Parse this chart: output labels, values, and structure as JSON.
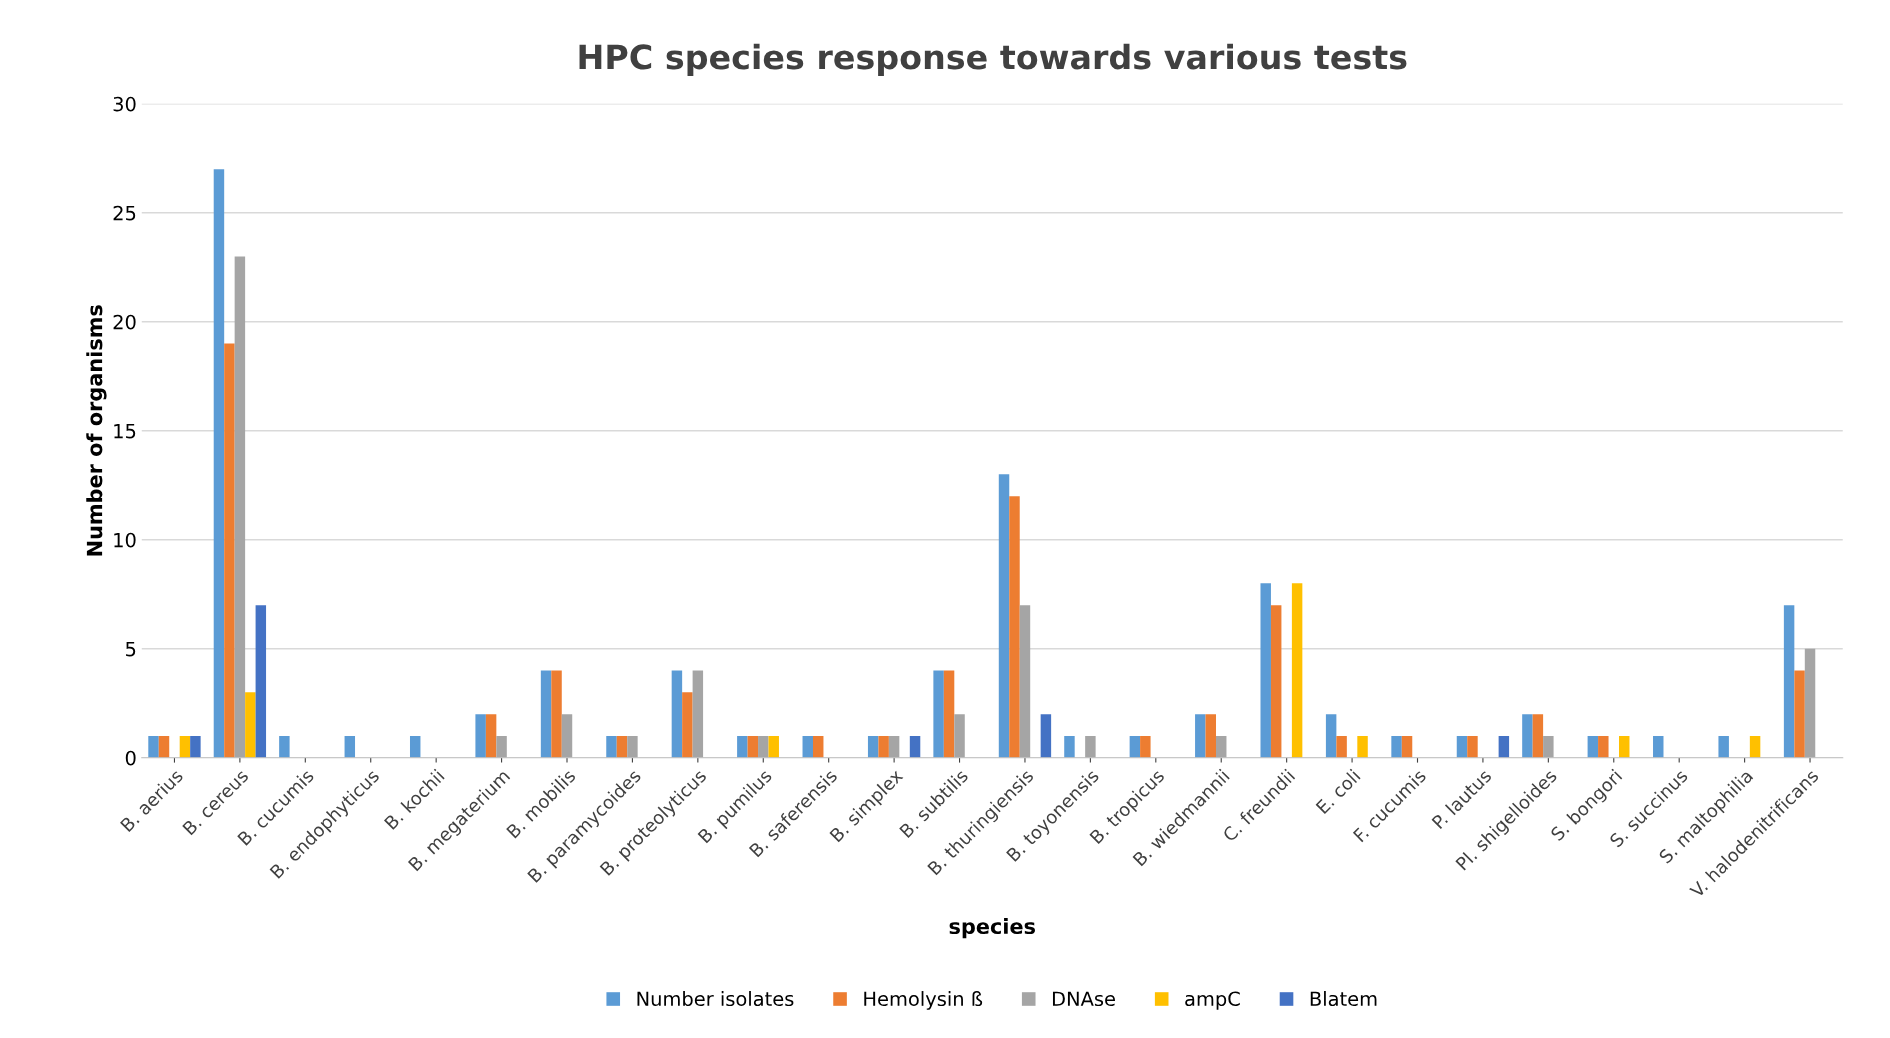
{
  "chart_data": {
    "type": "bar",
    "title": "HPC species response towards various tests",
    "xlabel": "species",
    "ylabel": "Number of organisms",
    "categories": [
      "B. aerius",
      "B. cereus",
      "B. cucumis",
      "B. endophyticus",
      "B. kochii",
      "B. megaterium",
      "B. mobilis",
      "B. paramycoides",
      "B. proteolyticus",
      "B. pumilus",
      "B. saferensis",
      "B. simplex",
      "B. subtilis",
      "B. thuringiensis",
      "B. toyonensis",
      "B. tropicus",
      "B. wiedmannii",
      "C. freundii",
      "E. coli",
      "F. cucumis",
      "P. lautus",
      "Pl. shigelloides",
      "S. bongori",
      "S. succinus",
      "S. maltophilia",
      "V. halodenitrificans"
    ],
    "series": [
      {
        "name": "Number isolates",
        "color": "#5b9bd5",
        "values": [
          1,
          27,
          1,
          1,
          1,
          2,
          4,
          1,
          4,
          1,
          1,
          1,
          4,
          13,
          1,
          1,
          2,
          8,
          2,
          1,
          1,
          2,
          1,
          1,
          1,
          7
        ]
      },
      {
        "name": "Hemolysin ß",
        "color": "#ed7d31",
        "values": [
          1,
          19,
          0,
          0,
          0,
          2,
          4,
          1,
          3,
          1,
          1,
          1,
          4,
          12,
          0,
          1,
          2,
          7,
          1,
          1,
          1,
          2,
          1,
          0,
          0,
          4
        ]
      },
      {
        "name": "DNAse",
        "color": "#a5a5a5",
        "values": [
          0,
          23,
          0,
          0,
          0,
          1,
          2,
          1,
          4,
          1,
          0,
          1,
          2,
          7,
          1,
          0,
          1,
          0,
          0,
          0,
          0,
          1,
          0,
          0,
          0,
          5
        ]
      },
      {
        "name": "ampC",
        "color": "#ffc000",
        "values": [
          1,
          3,
          0,
          0,
          0,
          0,
          0,
          0,
          0,
          1,
          0,
          0,
          0,
          0,
          0,
          0,
          0,
          8,
          1,
          0,
          0,
          0,
          1,
          0,
          1,
          0
        ]
      },
      {
        "name": "Blatem",
        "color": "#4472c4",
        "values": [
          1,
          7,
          0,
          0,
          0,
          0,
          0,
          0,
          0,
          0,
          0,
          1,
          0,
          2,
          0,
          0,
          0,
          0,
          0,
          0,
          1,
          0,
          0,
          0,
          0,
          0
        ]
      }
    ],
    "ylim": [
      0,
      30
    ],
    "yticks": [
      0,
      5,
      10,
      15,
      20,
      25,
      30
    ],
    "grid": "y",
    "legend": "bottom"
  }
}
